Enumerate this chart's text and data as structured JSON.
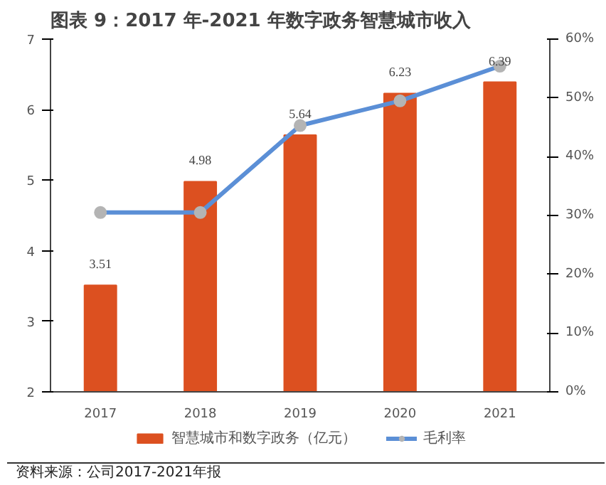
{
  "chart_data": {
    "type": "bar",
    "title": "图表 9：2017 年-2021 年数字政务智慧城市收入",
    "categories": [
      "2017",
      "2018",
      "2019",
      "2020",
      "2021"
    ],
    "series": [
      {
        "name": "智慧城市和数字政务（亿元）",
        "color": "#dc5020",
        "values": [
          3.51,
          4.98,
          5.64,
          6.23,
          6.39
        ],
        "value_labels": [
          "3.51",
          "4.98",
          "5.64",
          "6.23",
          "6.39"
        ]
      },
      {
        "name": "毛利率",
        "type": "line",
        "axis": "y2",
        "color": "#5b8fd6",
        "values": [
          30.5,
          30.5,
          45.3,
          49.5,
          55.4
        ]
      }
    ],
    "ylim": [
      2,
      7
    ],
    "yticks": [
      2,
      3,
      4,
      5,
      6,
      7
    ],
    "y2lim": [
      0,
      60
    ],
    "y2ticks": [
      {
        "value": 0,
        "label": "0%"
      },
      {
        "value": 10,
        "label": "10%"
      },
      {
        "value": 20,
        "label": "20%"
      },
      {
        "value": 30,
        "label": "30%"
      },
      {
        "value": 40,
        "label": "40%"
      },
      {
        "value": 50,
        "label": "50%"
      },
      {
        "value": 60,
        "label": "60%"
      }
    ],
    "grid": false,
    "legend": "bottom",
    "marker": "circle",
    "line_style": "solid",
    "annotations": [
      "资料来源：公司2017-2021年报"
    ]
  }
}
